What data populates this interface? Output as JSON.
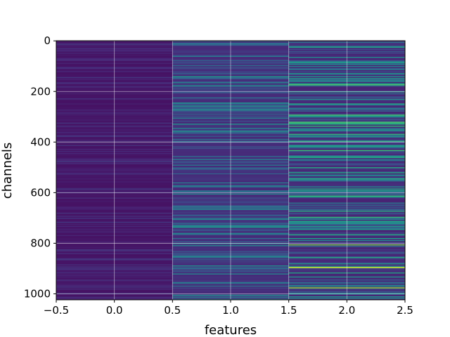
{
  "chart_data": {
    "type": "heatmap",
    "xlabel": "features",
    "ylabel": "channels",
    "xlim": [
      -0.5,
      2.5
    ],
    "ylim": [
      1023.5,
      -0.5
    ],
    "y_inverted": true,
    "grid": true,
    "colormap": "viridis",
    "x_ticks": [
      {
        "value": -0.5,
        "label": "−0.5"
      },
      {
        "value": 0.0,
        "label": "0.0"
      },
      {
        "value": 0.5,
        "label": "0.5"
      },
      {
        "value": 1.0,
        "label": "1.0"
      },
      {
        "value": 1.5,
        "label": "1.5"
      },
      {
        "value": 2.0,
        "label": "2.0"
      },
      {
        "value": 2.5,
        "label": "2.5"
      }
    ],
    "y_ticks": [
      {
        "value": 0,
        "label": "0"
      },
      {
        "value": 200,
        "label": "200"
      },
      {
        "value": 400,
        "label": "400"
      },
      {
        "value": 600,
        "label": "600"
      },
      {
        "value": 800,
        "label": "800"
      },
      {
        "value": 1000,
        "label": "1000"
      }
    ],
    "columns": [
      {
        "feature": 0,
        "base_level": 0.05,
        "variability": 0.05
      },
      {
        "feature": 1,
        "base_level": 0.12,
        "variability": 0.18
      },
      {
        "feature": 2,
        "base_level": 0.1,
        "variability": 0.28
      }
    ],
    "highlights": [
      {
        "feature": 1,
        "channel": 245,
        "value": 0.45
      },
      {
        "feature": 1,
        "channel": 490,
        "value": 0.4
      },
      {
        "feature": 1,
        "channel": 665,
        "value": 0.45
      },
      {
        "feature": 1,
        "channel": 760,
        "value": 0.45
      },
      {
        "feature": 1,
        "channel": 850,
        "value": 0.45
      },
      {
        "feature": 1,
        "channel": 955,
        "value": 0.45
      },
      {
        "feature": 2,
        "channel": 85,
        "value": 0.55
      },
      {
        "feature": 2,
        "channel": 230,
        "value": 0.5
      },
      {
        "feature": 2,
        "channel": 250,
        "value": 0.5
      },
      {
        "feature": 2,
        "channel": 375,
        "value": 0.55
      },
      {
        "feature": 2,
        "channel": 500,
        "value": 0.6
      },
      {
        "feature": 2,
        "channel": 590,
        "value": 0.55
      },
      {
        "feature": 2,
        "channel": 765,
        "value": 0.6
      },
      {
        "feature": 2,
        "channel": 780,
        "value": 0.55
      },
      {
        "feature": 2,
        "channel": 805,
        "value": 0.8
      },
      {
        "feature": 2,
        "channel": 855,
        "value": 0.6
      },
      {
        "feature": 2,
        "channel": 895,
        "value": 0.95
      },
      {
        "feature": 2,
        "channel": 975,
        "value": 0.85
      },
      {
        "feature": 2,
        "channel": 1010,
        "value": 0.5
      }
    ]
  }
}
